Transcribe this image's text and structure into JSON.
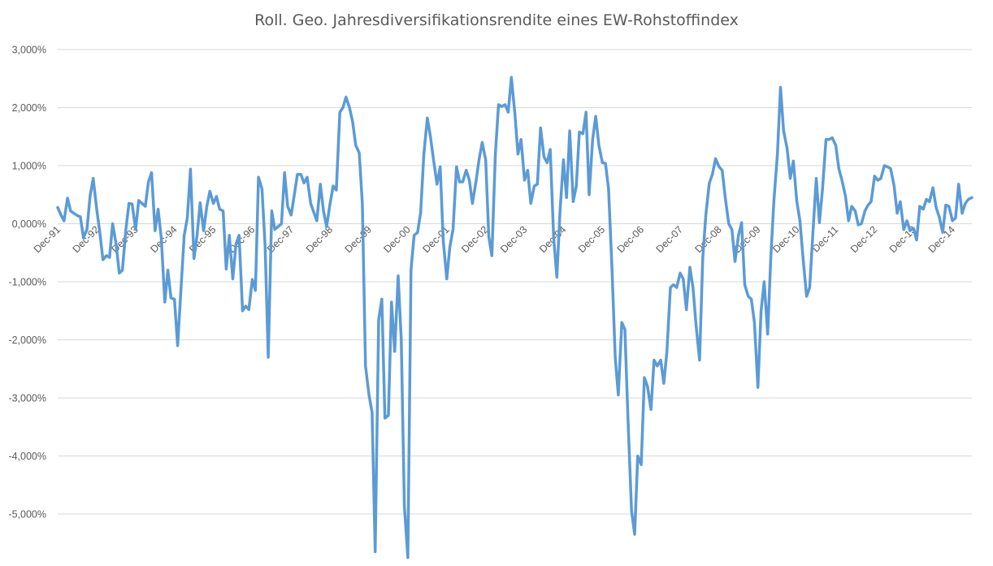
{
  "chart_data": {
    "type": "line",
    "title": "Roll. Geo. Jahresdiversifikationsrendite eines EW-Rohstoffindex",
    "xlabel": "",
    "ylabel": "",
    "ylim": [
      -5.8,
      3.0
    ],
    "y_ticks": [
      3,
      2,
      1,
      0,
      -1,
      -2,
      -3,
      -4,
      -5
    ],
    "y_tick_labels": [
      "3,000%",
      "2,000%",
      "1,000%",
      "0,000%",
      "-1,000%",
      "-2,000%",
      "-3,000%",
      "-4,000%",
      "-5,000%"
    ],
    "x_tick_labels": [
      "Dec-91",
      "Dec-92",
      "Dec-93",
      "Dec-94",
      "Dec-95",
      "Dec-96",
      "Dec-97",
      "Dec-98",
      "Dec-99",
      "Dec-00",
      "Dec-01",
      "Dec-02",
      "Dec-03",
      "Dec-04",
      "Dec-05",
      "Dec-06",
      "Dec-07",
      "Dec-08",
      "Dec-09",
      "Dec-10",
      "Dec-11",
      "Dec-12",
      "Dec-13",
      "Dec-14"
    ],
    "x_tick_positions": [
      1991.917,
      1992.917,
      1993.917,
      1994.917,
      1995.917,
      1996.917,
      1997.917,
      1998.917,
      1999.917,
      2000.917,
      2001.917,
      2002.917,
      2003.917,
      2004.917,
      2005.917,
      2006.917,
      2007.917,
      2008.917,
      2009.917,
      2010.917,
      2011.917,
      2012.917,
      2013.917,
      2014.917
    ],
    "xlim": [
      1991.917,
      2015.42
    ],
    "grid": true,
    "legend": "none",
    "series": [
      {
        "color": "#5B9BD5",
        "points": [
          [
            1991.917,
            0.28
          ],
          [
            1992.0,
            0.15
          ],
          [
            1992.08,
            0.05
          ],
          [
            1992.17,
            0.44
          ],
          [
            1992.25,
            0.22
          ],
          [
            1992.42,
            0.14
          ],
          [
            1992.5,
            0.12
          ],
          [
            1992.58,
            -0.24
          ],
          [
            1992.67,
            -0.1
          ],
          [
            1992.75,
            0.48
          ],
          [
            1992.83,
            0.78
          ],
          [
            1992.92,
            0.25
          ],
          [
            1993.0,
            -0.15
          ],
          [
            1993.08,
            -0.62
          ],
          [
            1993.17,
            -0.55
          ],
          [
            1993.25,
            -0.58
          ],
          [
            1993.33,
            0.0
          ],
          [
            1993.42,
            -0.35
          ],
          [
            1993.5,
            -0.85
          ],
          [
            1993.58,
            -0.8
          ],
          [
            1993.67,
            -0.1
          ],
          [
            1993.75,
            0.35
          ],
          [
            1993.83,
            0.34
          ],
          [
            1993.92,
            -0.1
          ],
          [
            1994.0,
            0.4
          ],
          [
            1994.17,
            0.3
          ],
          [
            1994.25,
            0.72
          ],
          [
            1994.33,
            0.88
          ],
          [
            1994.42,
            -0.12
          ],
          [
            1994.5,
            0.25
          ],
          [
            1994.58,
            -0.25
          ],
          [
            1994.67,
            -1.35
          ],
          [
            1994.75,
            -0.8
          ],
          [
            1994.83,
            -1.28
          ],
          [
            1994.92,
            -1.3
          ],
          [
            1995.0,
            -2.1
          ],
          [
            1995.08,
            -1.2
          ],
          [
            1995.17,
            -0.2
          ],
          [
            1995.25,
            0.1
          ],
          [
            1995.33,
            0.94
          ],
          [
            1995.42,
            -0.6
          ],
          [
            1995.5,
            -0.2
          ],
          [
            1995.58,
            0.36
          ],
          [
            1995.67,
            -0.12
          ],
          [
            1995.75,
            0.3
          ],
          [
            1995.83,
            0.56
          ],
          [
            1995.92,
            0.35
          ],
          [
            1996.0,
            0.47
          ],
          [
            1996.08,
            0.25
          ],
          [
            1996.17,
            0.22
          ],
          [
            1996.25,
            -0.78
          ],
          [
            1996.33,
            -0.2
          ],
          [
            1996.42,
            -0.95
          ],
          [
            1996.5,
            -0.35
          ],
          [
            1996.58,
            -0.2
          ],
          [
            1996.67,
            -1.5
          ],
          [
            1996.75,
            -1.42
          ],
          [
            1996.83,
            -1.48
          ],
          [
            1996.92,
            -0.96
          ],
          [
            1997.0,
            -1.15
          ],
          [
            1997.08,
            0.8
          ],
          [
            1997.17,
            0.6
          ],
          [
            1997.25,
            -0.4
          ],
          [
            1997.33,
            -2.3
          ],
          [
            1997.42,
            0.22
          ],
          [
            1997.5,
            -0.1
          ],
          [
            1997.58,
            -0.05
          ],
          [
            1997.67,
            0.0
          ],
          [
            1997.75,
            0.88
          ],
          [
            1997.83,
            0.3
          ],
          [
            1997.92,
            0.15
          ],
          [
            1998.0,
            0.5
          ],
          [
            1998.08,
            0.85
          ],
          [
            1998.17,
            0.85
          ],
          [
            1998.25,
            0.7
          ],
          [
            1998.33,
            0.8
          ],
          [
            1998.42,
            0.35
          ],
          [
            1998.5,
            0.2
          ],
          [
            1998.58,
            0.05
          ],
          [
            1998.67,
            0.68
          ],
          [
            1998.75,
            0.22
          ],
          [
            1998.83,
            -0.05
          ],
          [
            1998.92,
            0.35
          ],
          [
            1999.0,
            0.65
          ],
          [
            1999.08,
            0.58
          ],
          [
            1999.17,
            1.92
          ],
          [
            1999.25,
            2.0
          ],
          [
            1999.33,
            2.18
          ],
          [
            1999.42,
            2.0
          ],
          [
            1999.5,
            1.75
          ],
          [
            1999.58,
            1.35
          ],
          [
            1999.67,
            1.22
          ],
          [
            1999.75,
            0.35
          ],
          [
            1999.83,
            -2.45
          ],
          [
            1999.92,
            -2.95
          ],
          [
            2000.0,
            -3.25
          ],
          [
            2000.08,
            -5.65
          ],
          [
            2000.17,
            -1.65
          ],
          [
            2000.25,
            -1.3
          ],
          [
            2000.33,
            -3.35
          ],
          [
            2000.42,
            -3.3
          ],
          [
            2000.5,
            -1.35
          ],
          [
            2000.58,
            -2.2
          ],
          [
            2000.67,
            -0.9
          ],
          [
            2000.75,
            -2.0
          ],
          [
            2000.83,
            -4.85
          ],
          [
            2000.92,
            -5.75
          ],
          [
            2001.0,
            -0.8
          ],
          [
            2001.08,
            -0.2
          ],
          [
            2001.17,
            -0.15
          ],
          [
            2001.25,
            0.2
          ],
          [
            2001.33,
            1.2
          ],
          [
            2001.42,
            1.82
          ],
          [
            2001.5,
            1.5
          ],
          [
            2001.58,
            1.1
          ],
          [
            2001.67,
            0.68
          ],
          [
            2001.75,
            0.98
          ],
          [
            2001.83,
            -0.3
          ],
          [
            2001.92,
            -0.95
          ],
          [
            2002.0,
            -0.4
          ],
          [
            2002.08,
            -0.1
          ],
          [
            2002.17,
            0.98
          ],
          [
            2002.25,
            0.72
          ],
          [
            2002.33,
            0.72
          ],
          [
            2002.42,
            0.92
          ],
          [
            2002.5,
            0.75
          ],
          [
            2002.58,
            0.35
          ],
          [
            2002.67,
            0.72
          ],
          [
            2002.75,
            1.1
          ],
          [
            2002.83,
            1.4
          ],
          [
            2002.92,
            1.1
          ],
          [
            2003.0,
            -0.22
          ],
          [
            2003.08,
            -0.55
          ],
          [
            2003.17,
            1.2
          ],
          [
            2003.25,
            2.05
          ],
          [
            2003.33,
            2.02
          ],
          [
            2003.42,
            2.05
          ],
          [
            2003.5,
            1.92
          ],
          [
            2003.58,
            2.52
          ],
          [
            2003.67,
            1.9
          ],
          [
            2003.75,
            1.2
          ],
          [
            2003.83,
            1.45
          ],
          [
            2003.92,
            0.75
          ],
          [
            2004.0,
            0.92
          ],
          [
            2004.08,
            0.35
          ],
          [
            2004.17,
            0.65
          ],
          [
            2004.25,
            0.68
          ],
          [
            2004.33,
            1.65
          ],
          [
            2004.42,
            1.15
          ],
          [
            2004.5,
            1.05
          ],
          [
            2004.58,
            1.28
          ],
          [
            2004.67,
            -0.25
          ],
          [
            2004.75,
            -0.92
          ],
          [
            2004.83,
            0.2
          ],
          [
            2004.92,
            1.1
          ],
          [
            2005.0,
            0.45
          ],
          [
            2005.08,
            1.6
          ],
          [
            2005.17,
            0.38
          ],
          [
            2005.25,
            0.65
          ],
          [
            2005.33,
            1.58
          ],
          [
            2005.42,
            1.55
          ],
          [
            2005.5,
            1.92
          ],
          [
            2005.58,
            0.5
          ],
          [
            2005.67,
            1.45
          ],
          [
            2005.75,
            1.85
          ],
          [
            2005.83,
            1.35
          ],
          [
            2005.92,
            1.05
          ],
          [
            2006.0,
            1.04
          ],
          [
            2006.08,
            0.6
          ],
          [
            2006.17,
            -0.8
          ],
          [
            2006.25,
            -2.3
          ],
          [
            2006.33,
            -2.95
          ],
          [
            2006.42,
            -1.7
          ],
          [
            2006.5,
            -1.82
          ],
          [
            2006.58,
            -3.4
          ],
          [
            2006.67,
            -4.95
          ],
          [
            2006.75,
            -5.35
          ],
          [
            2006.83,
            -4.0
          ],
          [
            2006.92,
            -4.15
          ],
          [
            2007.0,
            -2.65
          ],
          [
            2007.08,
            -2.8
          ],
          [
            2007.17,
            -3.2
          ],
          [
            2007.25,
            -2.35
          ],
          [
            2007.33,
            -2.45
          ],
          [
            2007.42,
            -2.35
          ],
          [
            2007.5,
            -2.75
          ],
          [
            2007.58,
            -2.2
          ],
          [
            2007.67,
            -1.1
          ],
          [
            2007.75,
            -1.05
          ],
          [
            2007.83,
            -1.1
          ],
          [
            2007.92,
            -0.85
          ],
          [
            2008.0,
            -0.95
          ],
          [
            2008.08,
            -1.48
          ],
          [
            2008.17,
            -0.75
          ],
          [
            2008.25,
            -1.1
          ],
          [
            2008.33,
            -1.75
          ],
          [
            2008.42,
            -2.35
          ],
          [
            2008.5,
            -0.6
          ],
          [
            2008.58,
            0.15
          ],
          [
            2008.67,
            0.7
          ],
          [
            2008.75,
            0.85
          ],
          [
            2008.83,
            1.12
          ],
          [
            2008.92,
            0.98
          ],
          [
            2009.0,
            0.92
          ],
          [
            2009.08,
            0.45
          ],
          [
            2009.17,
            0.0
          ],
          [
            2009.25,
            -0.1
          ],
          [
            2009.33,
            -0.65
          ],
          [
            2009.42,
            -0.2
          ],
          [
            2009.5,
            0.02
          ],
          [
            2009.58,
            -1.05
          ],
          [
            2009.67,
            -1.25
          ],
          [
            2009.75,
            -1.3
          ],
          [
            2009.83,
            -1.7
          ],
          [
            2009.92,
            -2.82
          ],
          [
            2010.0,
            -1.5
          ],
          [
            2010.08,
            -1.0
          ],
          [
            2010.17,
            -1.9
          ],
          [
            2010.25,
            -0.6
          ],
          [
            2010.33,
            0.4
          ],
          [
            2010.42,
            1.2
          ],
          [
            2010.5,
            2.35
          ],
          [
            2010.58,
            1.6
          ],
          [
            2010.67,
            1.3
          ],
          [
            2010.75,
            0.78
          ],
          [
            2010.83,
            1.08
          ],
          [
            2010.92,
            0.38
          ],
          [
            2011.0,
            0.05
          ],
          [
            2011.08,
            -0.6
          ],
          [
            2011.17,
            -1.25
          ],
          [
            2011.25,
            -1.1
          ],
          [
            2011.33,
            -0.2
          ],
          [
            2011.42,
            0.78
          ],
          [
            2011.5,
            0.02
          ],
          [
            2011.58,
            0.6
          ],
          [
            2011.67,
            1.45
          ],
          [
            2011.75,
            1.45
          ],
          [
            2011.83,
            1.48
          ],
          [
            2011.92,
            1.35
          ],
          [
            2012.0,
            0.95
          ],
          [
            2012.08,
            0.75
          ],
          [
            2012.17,
            0.48
          ],
          [
            2012.25,
            0.05
          ],
          [
            2012.33,
            0.3
          ],
          [
            2012.42,
            0.22
          ],
          [
            2012.5,
            -0.02
          ],
          [
            2012.58,
            0.0
          ],
          [
            2012.67,
            0.22
          ],
          [
            2012.75,
            0.32
          ],
          [
            2012.83,
            0.38
          ],
          [
            2012.92,
            0.82
          ],
          [
            2013.0,
            0.75
          ],
          [
            2013.08,
            0.78
          ],
          [
            2013.17,
            1.0
          ],
          [
            2013.25,
            0.98
          ],
          [
            2013.33,
            0.95
          ],
          [
            2013.42,
            0.65
          ],
          [
            2013.5,
            0.18
          ],
          [
            2013.58,
            0.38
          ],
          [
            2013.67,
            -0.1
          ],
          [
            2013.75,
            0.05
          ],
          [
            2013.83,
            -0.12
          ],
          [
            2013.92,
            -0.08
          ],
          [
            2014.0,
            -0.28
          ],
          [
            2014.08,
            0.3
          ],
          [
            2014.17,
            0.25
          ],
          [
            2014.25,
            0.42
          ],
          [
            2014.33,
            0.38
          ],
          [
            2014.42,
            0.62
          ],
          [
            2014.5,
            0.28
          ],
          [
            2014.58,
            0.12
          ],
          [
            2014.67,
            -0.15
          ],
          [
            2014.75,
            0.32
          ],
          [
            2014.83,
            0.3
          ],
          [
            2014.92,
            0.05
          ],
          [
            2015.0,
            0.1
          ],
          [
            2015.08,
            0.68
          ],
          [
            2015.17,
            0.18
          ],
          [
            2015.25,
            0.35
          ],
          [
            2015.33,
            0.42
          ],
          [
            2015.42,
            0.45
          ]
        ]
      }
    ]
  }
}
